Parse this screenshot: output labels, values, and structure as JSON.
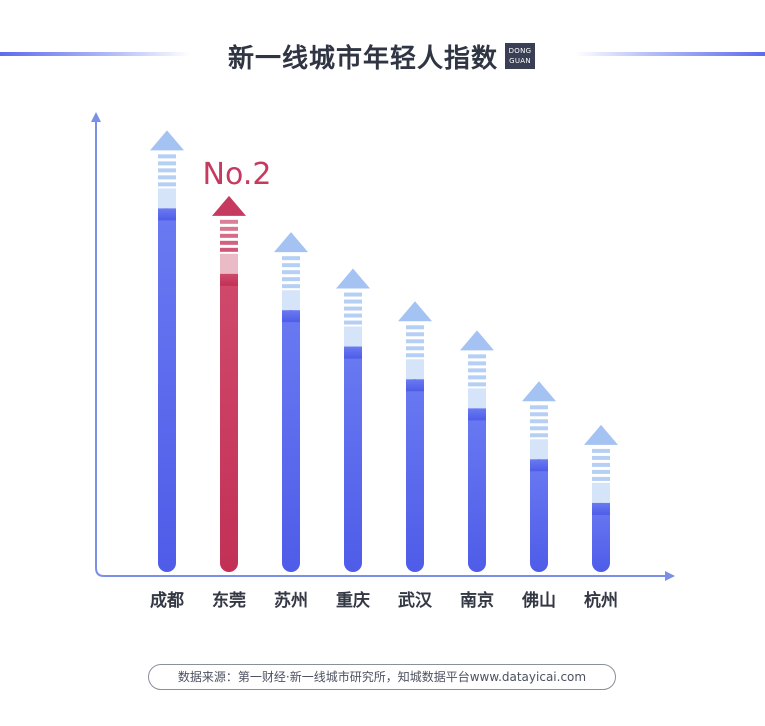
{
  "header": {
    "title": "新一线城市年轻人指数",
    "logo_line1": "DONG",
    "logo_line2": "GUAN"
  },
  "colors": {
    "bar_default": "#5d6bef",
    "bar_highlight": "#c73a5f",
    "arrow_default": "#a4c3f2",
    "arrow_highlight": "#c73a5f",
    "axis": "#7a90e8"
  },
  "chart_data": {
    "type": "bar",
    "categories": [
      "成都",
      "东莞",
      "苏州",
      "重庆",
      "武汉",
      "南京",
      "佛山",
      "杭州"
    ],
    "values": [
      100,
      82,
      72,
      62,
      53,
      45,
      31,
      19
    ],
    "highlight_index": 1,
    "annotation": "No.2",
    "ylim": [
      0,
      110
    ]
  },
  "source": "数据来源：第一财经·新一线城市研究所，知城数据平台www.datayicai.com"
}
